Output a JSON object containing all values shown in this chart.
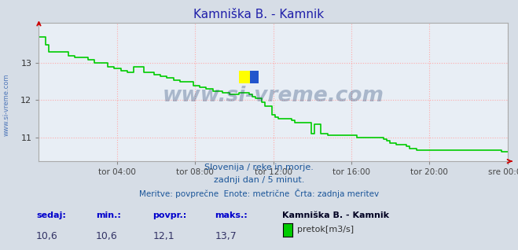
{
  "title": "Kamniška B. - Kamnik",
  "title_color": "#2020aa",
  "bg_color": "#d6dde6",
  "plot_bg_color": "#e8eef5",
  "grid_color": "#ffaaaa",
  "line_color": "#00cc00",
  "line_width": 1.2,
  "xticklabels": [
    "tor 04:00",
    "tor 08:00",
    "tor 12:00",
    "tor 16:00",
    "tor 20:00",
    "sre 00:00"
  ],
  "xtick_positions": [
    0.167,
    0.333,
    0.5,
    0.667,
    0.833,
    1.0
  ],
  "ylim": [
    10.35,
    14.1
  ],
  "yticks": [
    11,
    12,
    13
  ],
  "watermark": "www.si-vreme.com",
  "watermark_color": "#1a3a6a",
  "watermark_alpha": 0.3,
  "footer_line1": "Slovenija / reke in morje.",
  "footer_line2": "zadnji dan / 5 minut.",
  "footer_line3": "Meritve: povprečne  Enote: metrične  Črta: zadnja meritev",
  "footer_color": "#1a5599",
  "bottom_labels": [
    "sedaj:",
    "min.:",
    "povpr.:",
    "maks.:"
  ],
  "bottom_values": [
    "10,6",
    "10,6",
    "12,1",
    "13,7"
  ],
  "bottom_label_color": "#0000cc",
  "station_name": "Kamniška B. - Kamnik",
  "legend_label": "pretok[m3/s]",
  "legend_color": "#00cc00",
  "arrow_color": "#cc0000",
  "x_values": [
    0.0,
    0.007,
    0.014,
    0.021,
    0.028,
    0.035,
    0.042,
    0.049,
    0.056,
    0.063,
    0.07,
    0.077,
    0.084,
    0.091,
    0.098,
    0.105,
    0.112,
    0.119,
    0.126,
    0.133,
    0.14,
    0.147,
    0.154,
    0.161,
    0.168,
    0.175,
    0.182,
    0.189,
    0.196,
    0.203,
    0.21,
    0.217,
    0.224,
    0.231,
    0.238,
    0.245,
    0.252,
    0.259,
    0.266,
    0.273,
    0.28,
    0.287,
    0.294,
    0.301,
    0.308,
    0.315,
    0.322,
    0.329,
    0.336,
    0.343,
    0.35,
    0.357,
    0.364,
    0.371,
    0.378,
    0.385,
    0.392,
    0.399,
    0.406,
    0.413,
    0.42,
    0.427,
    0.434,
    0.441,
    0.448,
    0.455,
    0.462,
    0.469,
    0.476,
    0.483,
    0.49,
    0.497,
    0.504,
    0.511,
    0.518,
    0.525,
    0.532,
    0.539,
    0.546,
    0.553,
    0.56,
    0.567,
    0.574,
    0.581,
    0.588,
    0.595,
    0.602,
    0.609,
    0.616,
    0.623,
    0.63,
    0.637,
    0.644,
    0.651,
    0.658,
    0.665,
    0.672,
    0.679,
    0.686,
    0.693,
    0.7,
    0.707,
    0.714,
    0.721,
    0.728,
    0.735,
    0.742,
    0.749,
    0.756,
    0.763,
    0.77,
    0.777,
    0.784,
    0.791,
    0.798,
    0.805,
    0.812,
    0.819,
    0.826,
    0.833,
    0.84,
    0.847,
    0.854,
    0.861,
    0.868,
    0.875,
    0.882,
    0.889,
    0.896,
    0.903,
    0.91,
    0.917,
    0.924,
    0.931,
    0.938,
    0.945,
    0.952,
    0.959,
    0.966,
    0.973,
    0.98,
    0.987,
    0.994,
    1.0
  ],
  "y_values": [
    13.7,
    13.7,
    13.5,
    13.3,
    13.3,
    13.3,
    13.3,
    13.3,
    13.3,
    13.2,
    13.2,
    13.15,
    13.15,
    13.15,
    13.15,
    13.1,
    13.1,
    13.0,
    13.0,
    13.0,
    13.0,
    12.9,
    12.9,
    12.85,
    12.85,
    12.8,
    12.8,
    12.75,
    12.75,
    12.9,
    12.9,
    12.9,
    12.75,
    12.75,
    12.75,
    12.7,
    12.7,
    12.65,
    12.65,
    12.6,
    12.6,
    12.55,
    12.55,
    12.5,
    12.5,
    12.5,
    12.5,
    12.4,
    12.4,
    12.35,
    12.35,
    12.3,
    12.3,
    12.25,
    12.25,
    12.25,
    12.2,
    12.2,
    12.15,
    12.15,
    12.15,
    12.2,
    12.2,
    12.2,
    12.15,
    12.1,
    12.05,
    12.05,
    11.95,
    11.85,
    11.85,
    11.6,
    11.55,
    11.5,
    11.5,
    11.5,
    11.5,
    11.45,
    11.4,
    11.4,
    11.4,
    11.4,
    11.4,
    11.1,
    11.35,
    11.35,
    11.1,
    11.1,
    11.05,
    11.05,
    11.05,
    11.05,
    11.05,
    11.05,
    11.05,
    11.05,
    11.05,
    11.0,
    11.0,
    11.0,
    11.0,
    11.0,
    11.0,
    11.0,
    11.0,
    10.95,
    10.9,
    10.85,
    10.85,
    10.8,
    10.8,
    10.8,
    10.75,
    10.7,
    10.7,
    10.65,
    10.65,
    10.65,
    10.65,
    10.65,
    10.65,
    10.65,
    10.65,
    10.65,
    10.65,
    10.65,
    10.65,
    10.65,
    10.65,
    10.65,
    10.65,
    10.65,
    10.65,
    10.65,
    10.65,
    10.65,
    10.65,
    10.65,
    10.65,
    10.65,
    10.65,
    10.6,
    10.6,
    10.6
  ]
}
